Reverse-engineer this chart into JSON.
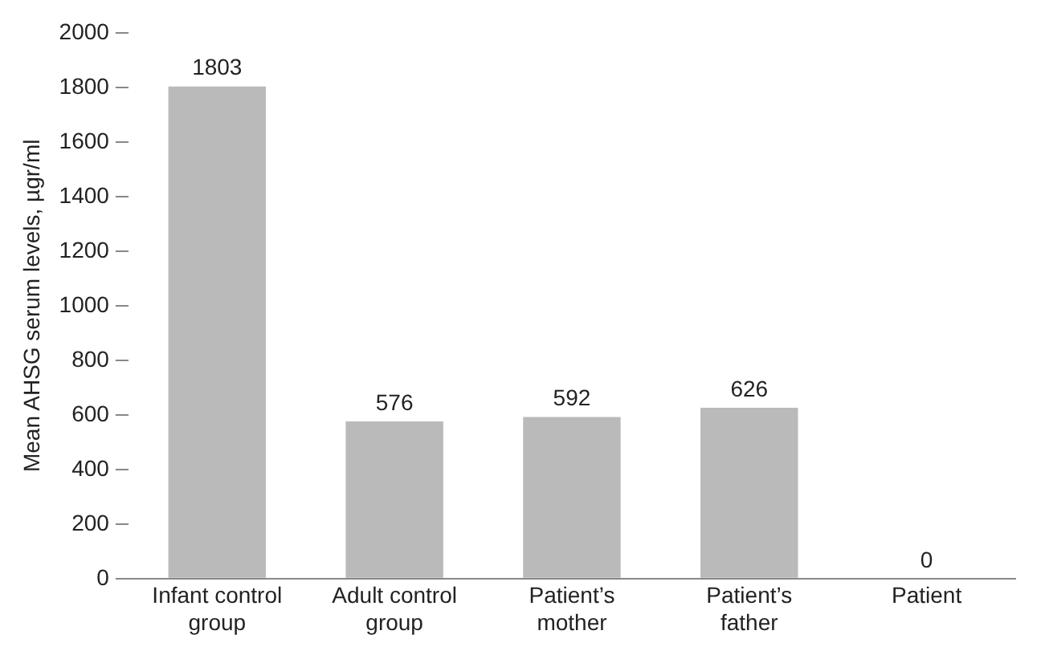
{
  "chart_data": {
    "type": "bar",
    "ylabel": "Mean AHSG serum levels, µgr/ml",
    "categories": [
      "Infant control group",
      "Adult control group",
      "Patient’s mother",
      "Patient’s father",
      "Patient"
    ],
    "values": [
      1803,
      576,
      592,
      626,
      0
    ],
    "color": "#bababa",
    "ylim": [
      0,
      2000
    ],
    "yticks": [
      0,
      200,
      400,
      600,
      800,
      1000,
      1200,
      1400,
      1600,
      1800,
      2000
    ],
    "data_labels": true,
    "grid": false,
    "legend": false
  }
}
